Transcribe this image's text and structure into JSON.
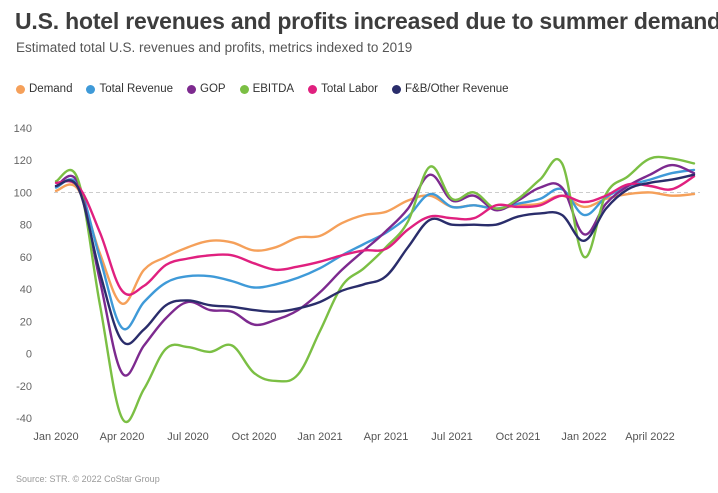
{
  "header": {
    "title": "U.S. hotel revenues and profits increased due to summer demand",
    "subtitle": "Estimated total U.S. revenues and profits, metrics indexed to 2019"
  },
  "footer": {
    "source": "Source: STR. © 2022 CoStar Group"
  },
  "chart_data": {
    "type": "line",
    "title": "U.S. hotel revenues and profits increased due to summer demand",
    "subtitle": "Estimated total U.S. revenues and profits, metrics indexed to 2019",
    "xlabel": "",
    "ylabel": "",
    "ylim": [
      -40,
      140
    ],
    "yticks": [
      -40,
      -20,
      0,
      20,
      40,
      60,
      80,
      100,
      120,
      140
    ],
    "reference_line": 100,
    "x_tick_labels": [
      "Jan 2020",
      "Apr 2020",
      "Jul 2020",
      "Oct 2020",
      "Jan 2021",
      "Apr 2021",
      "Jul 2021",
      "Oct 2021",
      "Jan 2022",
      "April 2022"
    ],
    "x_tick_positions": [
      0,
      3,
      6,
      9,
      12,
      15,
      18,
      21,
      24,
      27
    ],
    "x": [
      0,
      1,
      2,
      3,
      4,
      5,
      6,
      7,
      8,
      9,
      10,
      11,
      12,
      13,
      14,
      15,
      16,
      17,
      18,
      19,
      20,
      21,
      22,
      23,
      24,
      25,
      26,
      27,
      28,
      29
    ],
    "legend_position": "top-left",
    "series": [
      {
        "name": "Demand",
        "color": "#f5a05a",
        "values": [
          101,
          102,
          62,
          31,
          52,
          60,
          66,
          70,
          69,
          64,
          66,
          72,
          73,
          81,
          86,
          88,
          95,
          98,
          91,
          92,
          90,
          92,
          93,
          98,
          91,
          96,
          99,
          100,
          98,
          99
        ]
      },
      {
        "name": "Total Revenue",
        "color": "#3f9ad8",
        "values": [
          103,
          105,
          59,
          16,
          32,
          44,
          48,
          48,
          45,
          41,
          43,
          47,
          53,
          61,
          68,
          75,
          85,
          99,
          91,
          92,
          90,
          93,
          96,
          102,
          86,
          97,
          104,
          108,
          112,
          114
        ]
      },
      {
        "name": "GOP",
        "color": "#7d2a8f",
        "values": [
          104,
          106,
          45,
          -12,
          5,
          22,
          32,
          27,
          26,
          18,
          21,
          27,
          38,
          52,
          64,
          76,
          90,
          111,
          95,
          98,
          89,
          95,
          103,
          103,
          74,
          93,
          104,
          111,
          117,
          112
        ]
      },
      {
        "name": "EBITDA",
        "color": "#7bbf44",
        "values": [
          107,
          108,
          30,
          -40,
          -22,
          3,
          4,
          1,
          5,
          -12,
          -17,
          -13,
          14,
          42,
          53,
          66,
          82,
          116,
          96,
          100,
          90,
          96,
          108,
          118,
          60,
          99,
          110,
          121,
          121,
          118
        ]
      },
      {
        "name": "Total Labor",
        "color": "#e0207f",
        "values": [
          106,
          104,
          75,
          39,
          42,
          55,
          59,
          61,
          61,
          56,
          52,
          54,
          57,
          61,
          64,
          65,
          77,
          85,
          84,
          84,
          92,
          91,
          92,
          98,
          94,
          98,
          105,
          104,
          102,
          110
        ]
      },
      {
        "name": "F&B/Other Revenue",
        "color": "#2a2d6b",
        "values": [
          104,
          103,
          50,
          8,
          15,
          30,
          33,
          30,
          29,
          27,
          26,
          28,
          32,
          39,
          43,
          48,
          66,
          83,
          80,
          80,
          80,
          85,
          87,
          86,
          70,
          90,
          102,
          106,
          108,
          111
        ]
      }
    ]
  }
}
